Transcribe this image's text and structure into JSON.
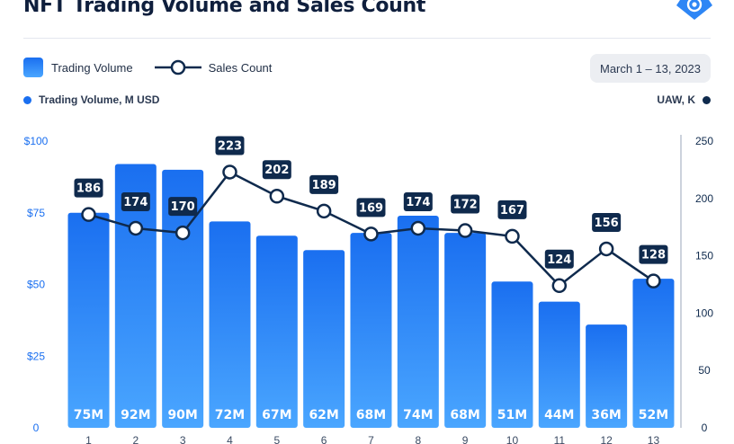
{
  "title": "NFT Trading Volume and Sales Count",
  "date_range": "March 1 – 13, 2023",
  "legend": {
    "bar": "Trading Volume",
    "line": "Sales Count"
  },
  "left_axis_label": "Trading Volume, M USD",
  "right_axis_label": "UAW, K",
  "colors": {
    "bar_top": "#1a6ff0",
    "bar_bottom": "#4aa6ff",
    "line": "#0f2a4d",
    "left_axis": "#1a6ff0",
    "right_axis": "#0f2a4d"
  },
  "icons": {
    "logo": "logo-icon"
  },
  "chart_data": {
    "type": "bar",
    "categories": [
      "1",
      "2",
      "3",
      "4",
      "5",
      "6",
      "7",
      "8",
      "9",
      "10",
      "11",
      "12",
      "13"
    ],
    "series": [
      {
        "name": "Trading Volume",
        "type": "bar",
        "axis": "left",
        "values": [
          75,
          92,
          90,
          72,
          67,
          62,
          68,
          74,
          68,
          51,
          44,
          36,
          52
        ],
        "labels": [
          "75M",
          "92M",
          "90M",
          "72M",
          "67M",
          "62M",
          "68M",
          "74M",
          "68M",
          "51M",
          "44M",
          "36M",
          "52M"
        ]
      },
      {
        "name": "Sales Count",
        "type": "line",
        "axis": "right",
        "values": [
          186,
          174,
          170,
          223,
          202,
          189,
          169,
          174,
          172,
          167,
          124,
          156,
          128
        ]
      }
    ],
    "left_axis": {
      "ticks": [
        "0",
        "$25",
        "$50",
        "$75",
        "$100"
      ],
      "values": [
        0,
        25,
        50,
        75,
        100
      ],
      "ylim": [
        0,
        100
      ]
    },
    "right_axis": {
      "ticks": [
        "0",
        "50",
        "100",
        "150",
        "200",
        "250"
      ],
      "values": [
        0,
        50,
        100,
        150,
        200,
        250
      ],
      "ylim": [
        0,
        250
      ]
    },
    "grid": false,
    "legend_position": "top-left"
  }
}
